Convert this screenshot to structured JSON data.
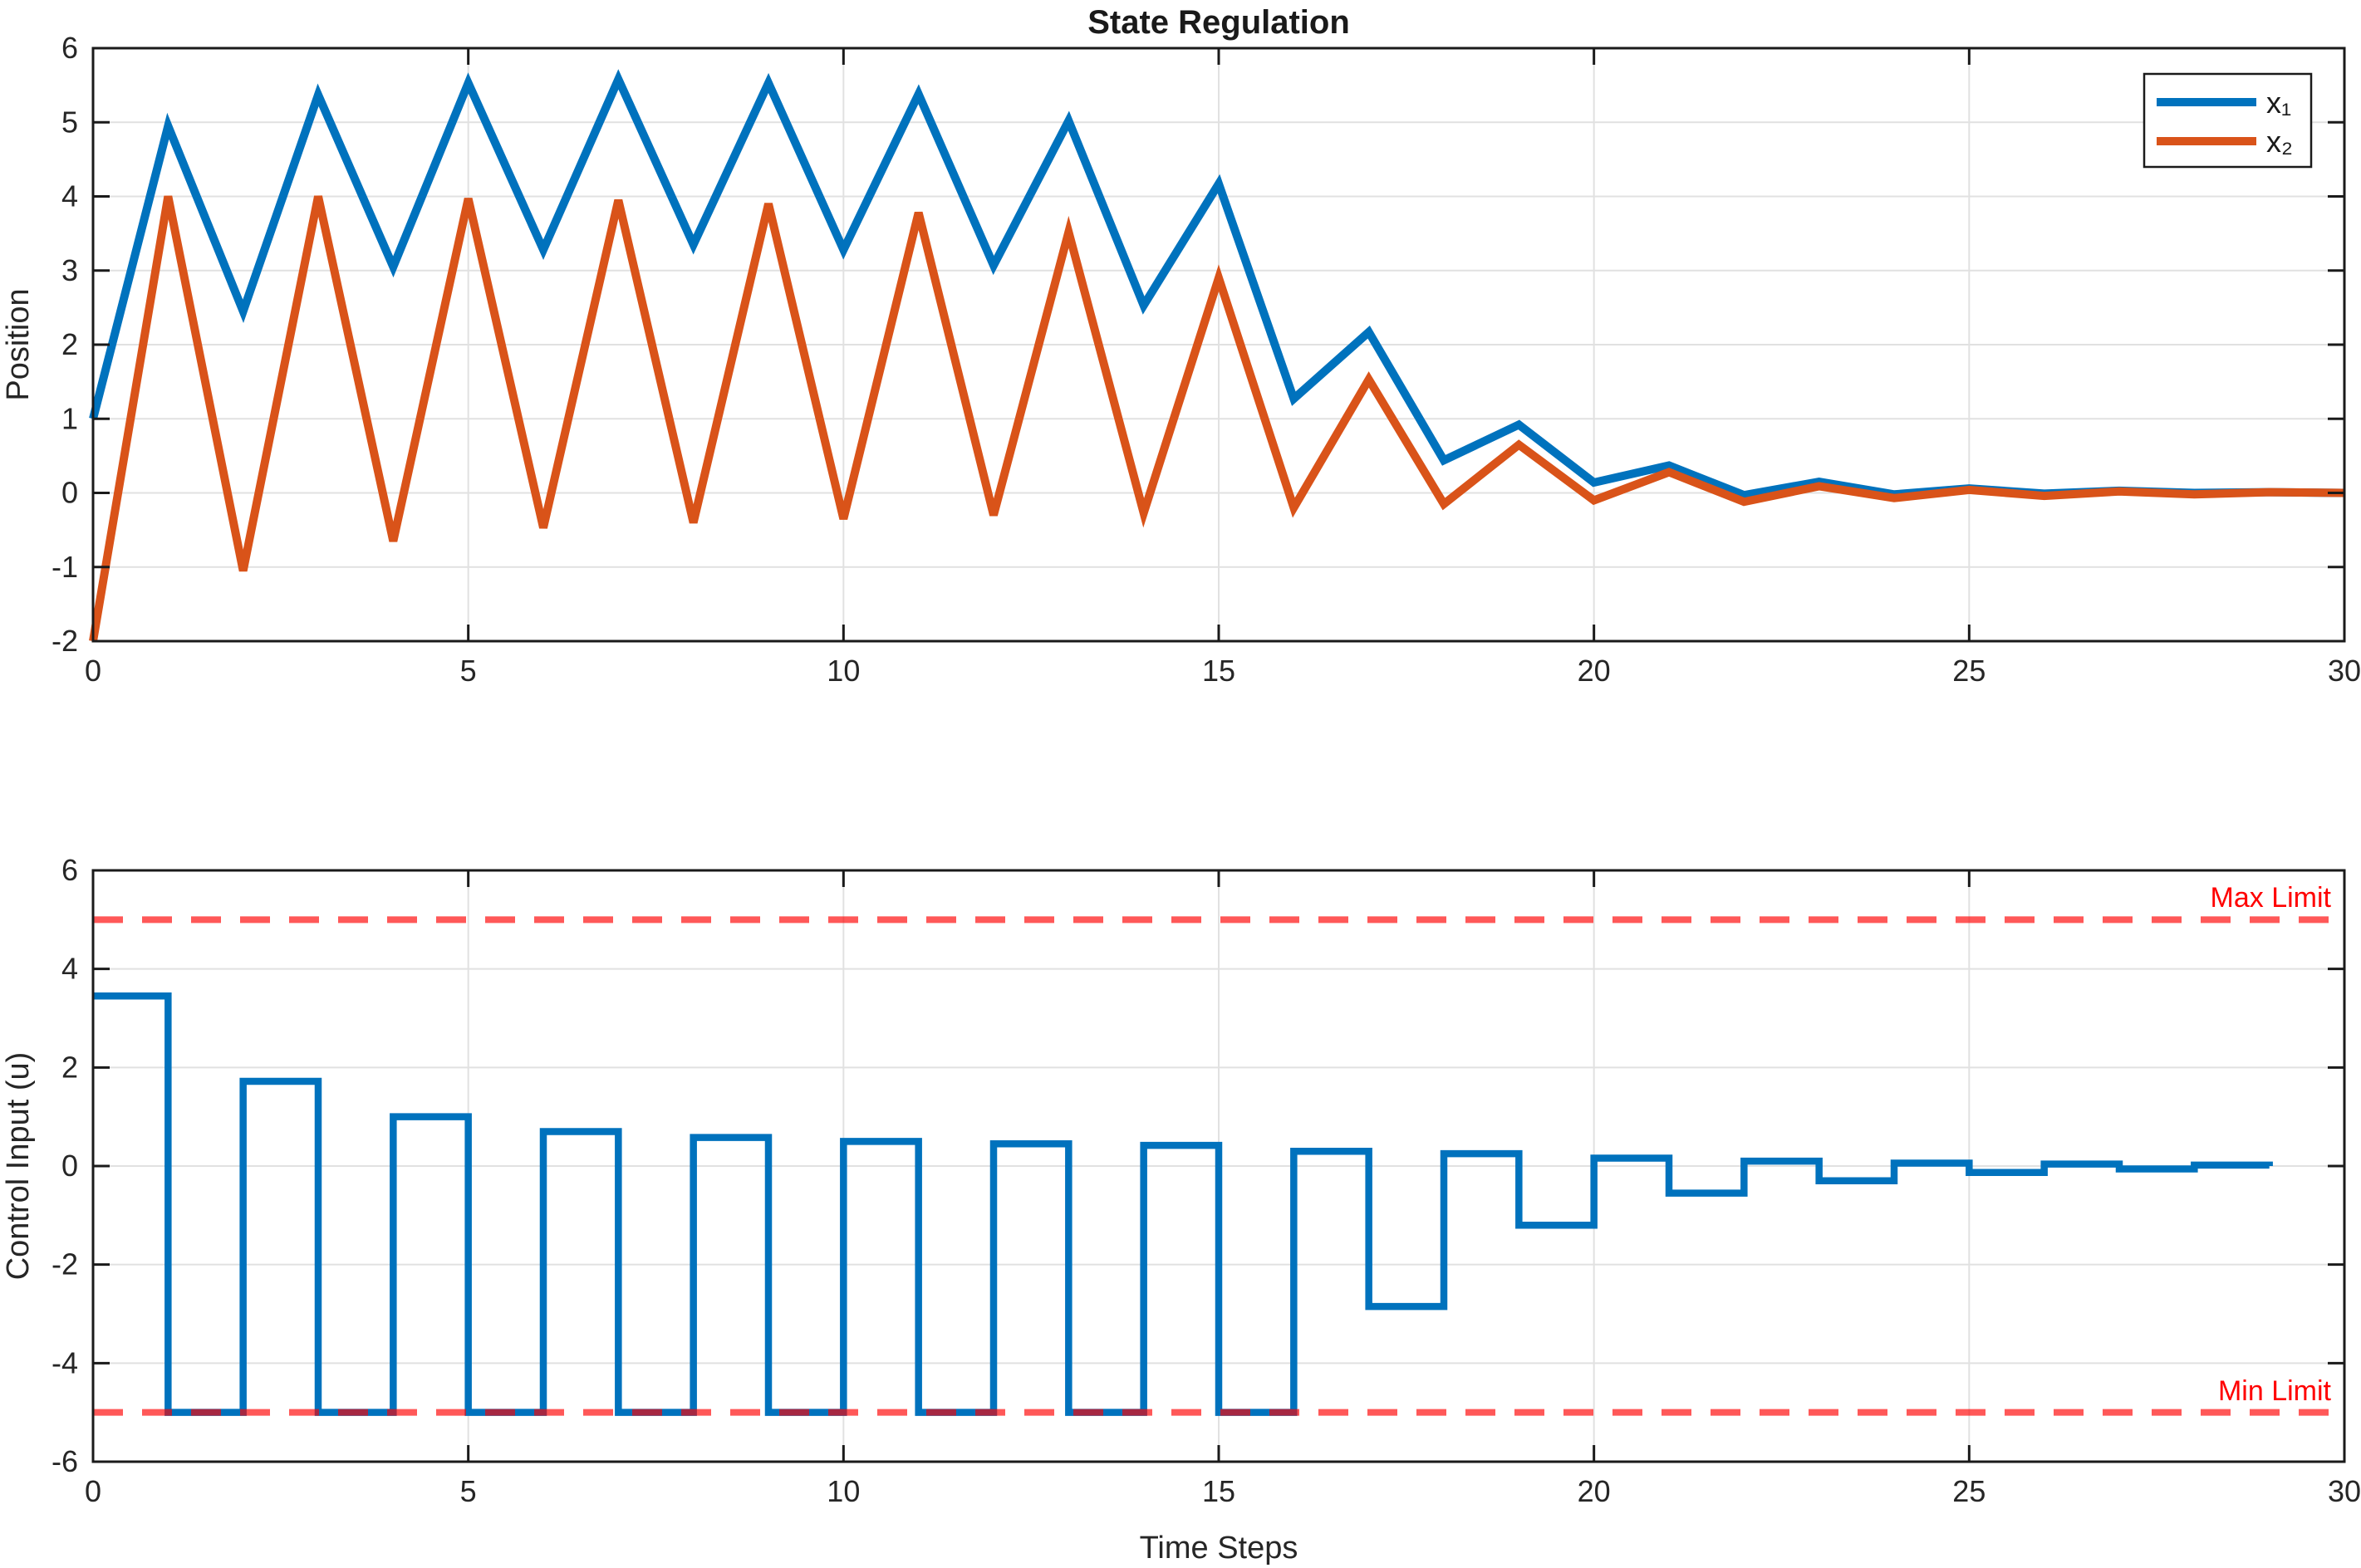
{
  "figure": {
    "title": "State Regulation",
    "background": "#FFFFFF"
  },
  "colors": {
    "x1": "#0072BD",
    "x2": "#D95319",
    "control": "#0072BD",
    "limit": "#FF0000",
    "limit_opacity": 0.65,
    "grid": "#E1E1E1",
    "axis": "#1A1A1A",
    "tick_text": "#262626"
  },
  "legend": {
    "entries": [
      {
        "label": "x₁",
        "color": "#0072BD"
      },
      {
        "label": "x₂",
        "color": "#D95319"
      }
    ]
  },
  "chart_data": [
    {
      "type": "line",
      "title": "State Regulation",
      "ylabel": "Position",
      "xlabel": "",
      "xlim": [
        0,
        30
      ],
      "ylim": [
        -2,
        6
      ],
      "xticks": [
        0,
        5,
        10,
        15,
        20,
        25,
        30
      ],
      "yticks": [
        -2,
        -1,
        0,
        1,
        2,
        3,
        4,
        5,
        6
      ],
      "grid": true,
      "legend_position": "top-right",
      "x": [
        0,
        1,
        2,
        3,
        4,
        5,
        6,
        7,
        8,
        9,
        10,
        11,
        12,
        13,
        14,
        15,
        16,
        17,
        18,
        19,
        20,
        21,
        22,
        23,
        24,
        25,
        26,
        27,
        28,
        29,
        30
      ],
      "series": [
        {
          "name": "x₁",
          "color": "#0072BD",
          "values": [
            1.0,
            4.95,
            2.45,
            5.37,
            3.05,
            5.53,
            3.28,
            5.58,
            3.35,
            5.53,
            3.28,
            5.38,
            3.07,
            5.02,
            2.53,
            4.17,
            1.27,
            2.17,
            0.44,
            0.92,
            0.14,
            0.37,
            -0.03,
            0.15,
            -0.02,
            0.06,
            -0.01,
            0.03,
            0.0,
            0.01,
            0.0
          ]
        },
        {
          "name": "x₂",
          "color": "#D95319",
          "values": [
            -2.0,
            4.0,
            -1.05,
            4.0,
            -0.65,
            3.97,
            -0.47,
            3.95,
            -0.4,
            3.9,
            -0.35,
            3.78,
            -0.3,
            3.52,
            -0.27,
            2.9,
            -0.2,
            1.53,
            -0.15,
            0.65,
            -0.1,
            0.28,
            -0.12,
            0.09,
            -0.07,
            0.04,
            -0.04,
            0.02,
            -0.02,
            0.01,
            0.0
          ]
        }
      ]
    },
    {
      "type": "stairs",
      "title": "",
      "ylabel": "Control Input (u)",
      "xlabel": "Time Steps",
      "xlim": [
        0,
        30
      ],
      "ylim": [
        -6,
        6
      ],
      "xticks": [
        0,
        5,
        10,
        15,
        20,
        25,
        30
      ],
      "yticks": [
        -6,
        -4,
        -2,
        0,
        2,
        4,
        6
      ],
      "grid": true,
      "x": [
        0,
        1,
        2,
        3,
        4,
        5,
        6,
        7,
        8,
        9,
        10,
        11,
        12,
        13,
        14,
        15,
        16,
        17,
        18,
        19,
        20,
        21,
        22,
        23,
        24,
        25,
        26,
        27,
        28,
        29
      ],
      "series": [
        {
          "name": "u",
          "color": "#0072BD",
          "values": [
            3.45,
            -5.0,
            1.72,
            -5.0,
            1.0,
            -5.0,
            0.7,
            -5.0,
            0.58,
            -5.0,
            0.5,
            -5.0,
            0.45,
            -5.0,
            0.42,
            -5.0,
            0.3,
            -2.85,
            0.25,
            -1.2,
            0.16,
            -0.55,
            0.1,
            -0.3,
            0.06,
            -0.13,
            0.04,
            -0.06,
            0.02,
            0.0
          ]
        }
      ],
      "limits": {
        "color": "#FF0000",
        "max": {
          "value": 5,
          "label": "Max Limit"
        },
        "min": {
          "value": -5,
          "label": "Min Limit"
        }
      }
    }
  ]
}
